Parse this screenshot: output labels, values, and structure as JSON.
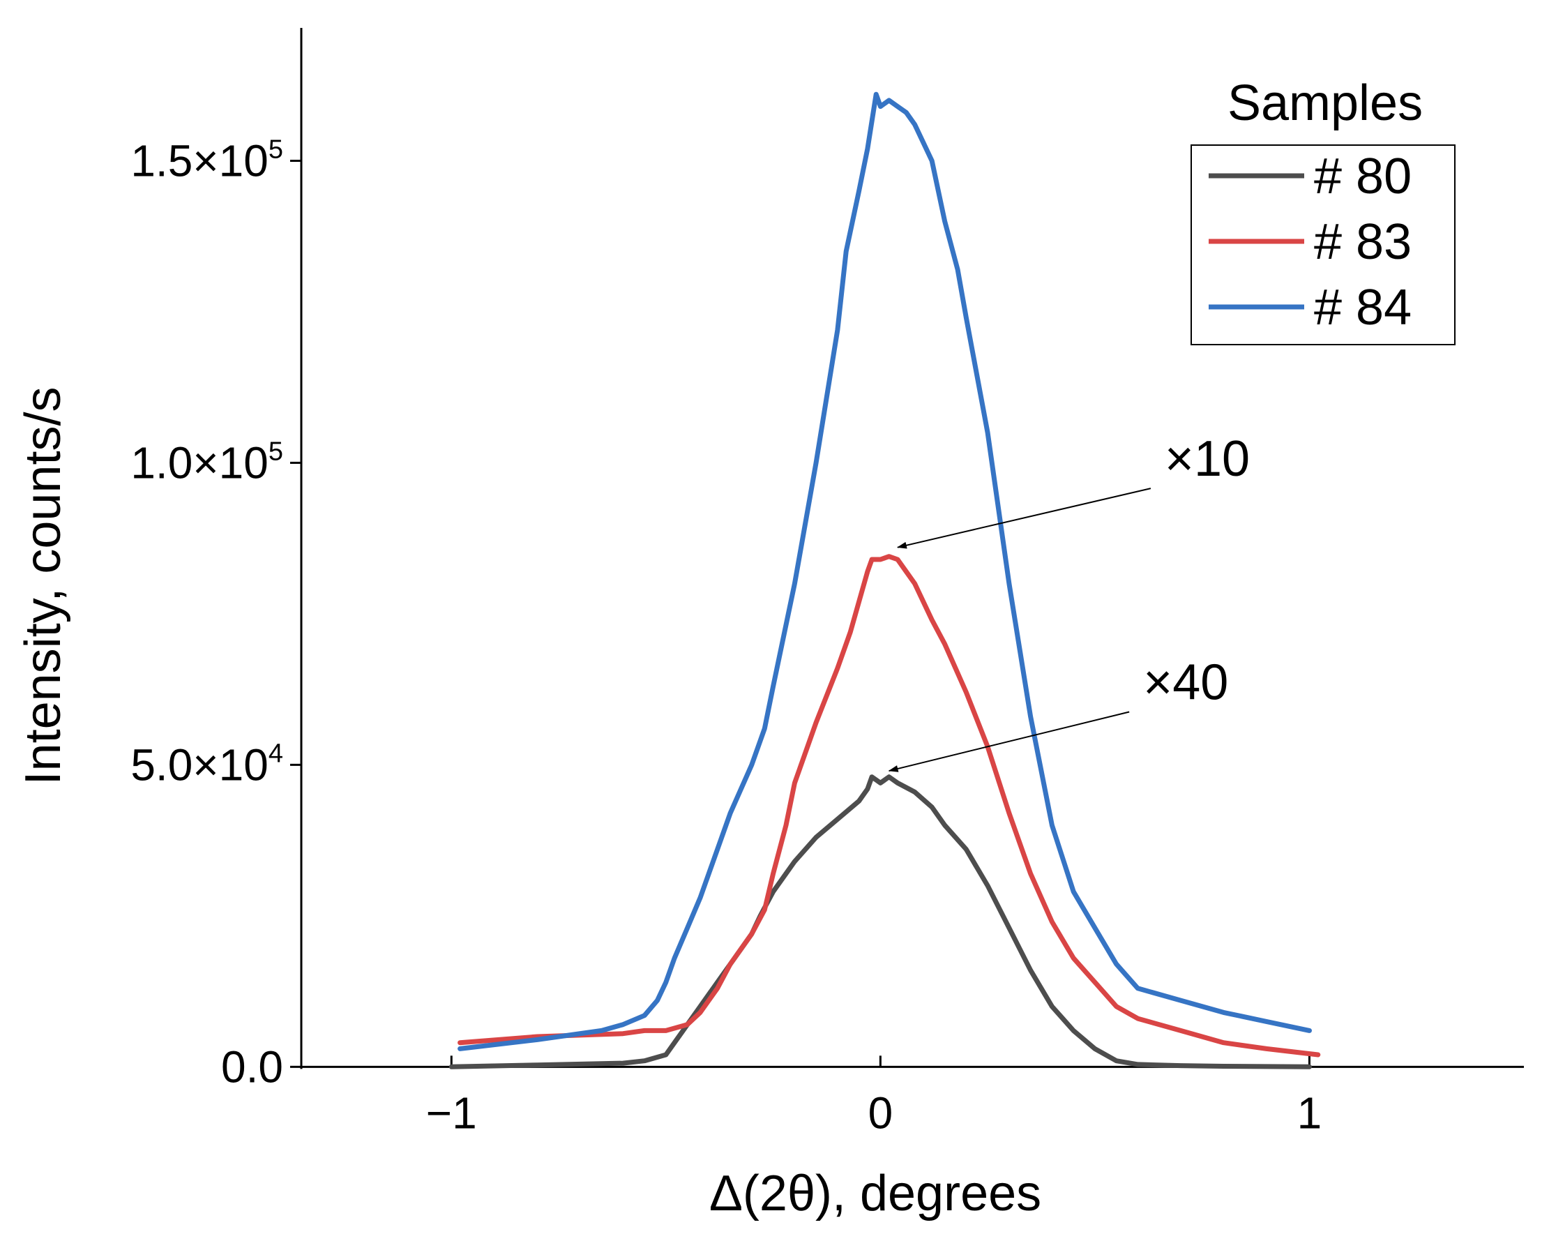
{
  "chart_data": {
    "type": "line",
    "xlabel": "Δ(2θ), degrees",
    "ylabel": "Intensity, counts/s",
    "xlim": [
      -1.35,
      1.5
    ],
    "ylim": [
      -1000,
      172000
    ],
    "xticks": [
      {
        "value": -1,
        "label": "−1"
      },
      {
        "value": 0,
        "label": "0"
      },
      {
        "value": 1,
        "label": "1"
      }
    ],
    "yticks": [
      {
        "value": 0,
        "base": "0.0",
        "exp": ""
      },
      {
        "value": 50000,
        "base": "5.0×10",
        "exp": "4"
      },
      {
        "value": 100000,
        "base": "1.0×10",
        "exp": "5"
      },
      {
        "value": 150000,
        "base": "1.5×10",
        "exp": "5"
      }
    ],
    "legend": {
      "title": "Samples",
      "position": "top-right"
    },
    "series": [
      {
        "name": "# 80",
        "color": "#4d4d4d",
        "x": [
          -1.0,
          -0.8,
          -0.6,
          -0.55,
          -0.5,
          -0.48,
          -0.45,
          -0.42,
          -0.38,
          -0.35,
          -0.32,
          -0.3,
          -0.28,
          -0.25,
          -0.22,
          -0.2,
          -0.15,
          -0.1,
          -0.05,
          -0.03,
          -0.02,
          0.0,
          0.02,
          0.04,
          0.08,
          0.12,
          0.15,
          0.2,
          0.25,
          0.3,
          0.35,
          0.4,
          0.45,
          0.5,
          0.55,
          0.6,
          0.7,
          0.8,
          1.0
        ],
        "y": [
          0,
          300,
          600,
          1000,
          2000,
          4000,
          7000,
          10000,
          14000,
          17000,
          20000,
          22000,
          25000,
          29000,
          32000,
          34000,
          38000,
          41000,
          44000,
          46000,
          48000,
          47000,
          48000,
          47000,
          45500,
          43000,
          40000,
          36000,
          30000,
          23000,
          16000,
          10000,
          6000,
          3000,
          1000,
          400,
          200,
          100,
          0
        ]
      },
      {
        "name": "# 83",
        "color": "#d94545",
        "x": [
          -0.98,
          -0.8,
          -0.6,
          -0.55,
          -0.5,
          -0.45,
          -0.42,
          -0.38,
          -0.35,
          -0.3,
          -0.27,
          -0.25,
          -0.22,
          -0.2,
          -0.15,
          -0.1,
          -0.07,
          -0.05,
          -0.03,
          -0.02,
          0.0,
          0.02,
          0.04,
          0.06,
          0.08,
          0.1,
          0.12,
          0.15,
          0.2,
          0.25,
          0.3,
          0.35,
          0.4,
          0.45,
          0.5,
          0.55,
          0.6,
          0.7,
          0.8,
          0.9,
          1.02
        ],
        "y": [
          4000,
          5000,
          5500,
          6000,
          6000,
          7000,
          9000,
          13000,
          17000,
          22000,
          26000,
          32000,
          40000,
          47000,
          57000,
          66000,
          72000,
          77000,
          82000,
          84000,
          84000,
          84500,
          84000,
          82000,
          80000,
          77000,
          74000,
          70000,
          62000,
          53000,
          42000,
          32000,
          24000,
          18000,
          14000,
          10000,
          8000,
          6000,
          4000,
          3000,
          2000
        ]
      },
      {
        "name": "# 84",
        "color": "#3674c4",
        "x": [
          -0.98,
          -0.8,
          -0.65,
          -0.6,
          -0.55,
          -0.52,
          -0.5,
          -0.48,
          -0.45,
          -0.42,
          -0.4,
          -0.35,
          -0.3,
          -0.27,
          -0.25,
          -0.2,
          -0.15,
          -0.1,
          -0.08,
          -0.05,
          -0.03,
          -0.01,
          0.0,
          0.02,
          0.04,
          0.06,
          0.08,
          0.1,
          0.12,
          0.15,
          0.18,
          0.2,
          0.25,
          0.3,
          0.35,
          0.4,
          0.45,
          0.5,
          0.55,
          0.6,
          0.7,
          0.8,
          0.9,
          1.0
        ],
        "y": [
          3000,
          4500,
          6000,
          7000,
          8500,
          11000,
          14000,
          18000,
          23000,
          28000,
          32000,
          42000,
          50000,
          56000,
          63000,
          80000,
          100000,
          122000,
          135000,
          145000,
          152000,
          161000,
          159000,
          160000,
          159000,
          158000,
          156000,
          153000,
          150000,
          140000,
          132000,
          124000,
          105000,
          80000,
          58000,
          40000,
          29000,
          23000,
          17000,
          13000,
          11000,
          9000,
          7500,
          6000
        ]
      }
    ],
    "annotations": [
      {
        "text": "×10",
        "points_to_series": "# 83",
        "arrow_tip": [
          0.04,
          86000
        ],
        "text_anchor": [
          0.5,
          99000
        ]
      },
      {
        "text": "×40",
        "points_to_series": "# 80",
        "arrow_tip": [
          0.02,
          49000
        ],
        "text_anchor": [
          0.45,
          62000
        ]
      }
    ]
  }
}
